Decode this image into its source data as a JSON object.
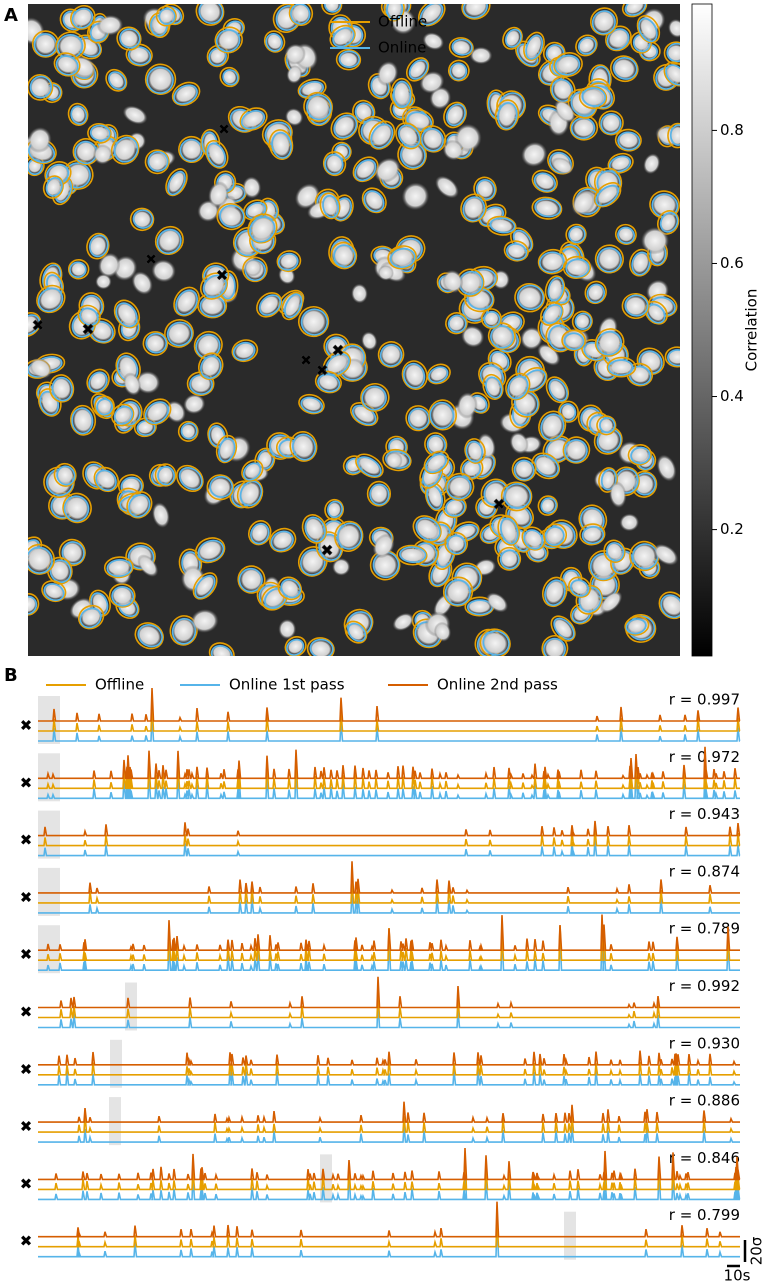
{
  "panel_a": {
    "label": "A",
    "legend": [
      {
        "name": "Offline",
        "color": "#e69f00"
      },
      {
        "name": "Online",
        "color": "#56b4e9"
      }
    ],
    "colorbar": {
      "label": "Correlation",
      "lim": [
        0.01,
        0.99
      ],
      "ticks": [
        0.2,
        0.4,
        0.6,
        0.8
      ]
    }
  },
  "panel_b": {
    "label": "B",
    "legend": [
      {
        "name": "Offline",
        "color": "#e69f00"
      },
      {
        "name": "Online 1st pass",
        "color": "#56b4e9"
      },
      {
        "name": "Online 2nd pass",
        "color": "#d55e00"
      }
    ],
    "rows": [
      {
        "marker_color": "#009e73",
        "r": "r = 0.997"
      },
      {
        "marker_color": "#e69f00",
        "r": "r = 0.972"
      },
      {
        "marker_color": "#56b4e9",
        "r": "r = 0.943"
      },
      {
        "marker_color": "#f0e442",
        "r": "r = 0.874"
      },
      {
        "marker_color": "#d55e00",
        "r": "r = 0.789"
      },
      {
        "marker_color": "#0072b2",
        "r": "r = 0.992"
      },
      {
        "marker_color": "#cc79a7",
        "r": "r = 0.930"
      },
      {
        "marker_color": "#000000",
        "r": "r = 0.886"
      },
      {
        "marker_color": "#999999",
        "r": "r = 0.846"
      },
      {
        "marker_color": "#9b4fb0",
        "r": "r = 0.799"
      }
    ],
    "scale": {
      "amplitude": "20σ",
      "time": "10s"
    }
  }
}
